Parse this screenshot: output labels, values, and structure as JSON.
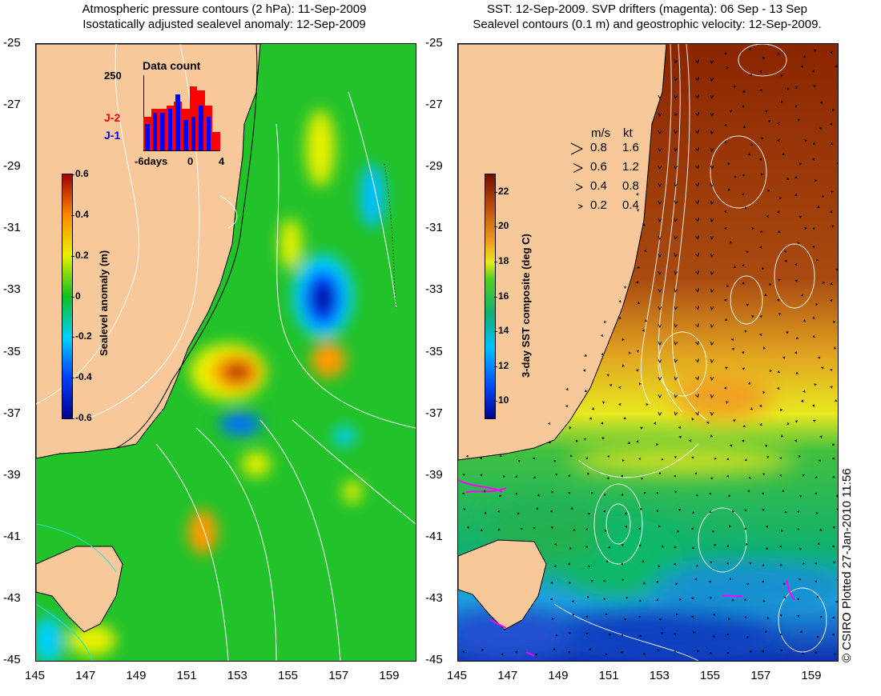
{
  "left_panel": {
    "title_line1": "Atmospheric pressure contours (2 hPa): 11-Sep-2009",
    "title_line2": "Isostatically adjusted sealevel anomaly: 12-Sep-2009",
    "colorbar": {
      "label": "Sealevel anomaly (m)",
      "ticks": [
        "0.6",
        "0.4",
        "0.2",
        "0",
        "-0.2",
        "-0.4",
        "-0.6"
      ],
      "range": [
        -0.6,
        0.6
      ]
    },
    "inset": {
      "title": "Data count",
      "ymax_label": "250",
      "xlabels": [
        "-6days",
        "0",
        "4"
      ],
      "legend": [
        {
          "label": "J-2",
          "color": "#ff0000"
        },
        {
          "label": "J-1",
          "color": "#0000ff"
        }
      ],
      "bars_j2": [
        0.45,
        0.55,
        0.55,
        0.6,
        0.65,
        0.55,
        0.85,
        0.8,
        0.6,
        0.25
      ],
      "bars_j1": [
        0.35,
        0.5,
        0.5,
        0.55,
        0.75,
        0.4,
        0.45,
        0.6,
        0.45,
        0.0
      ]
    }
  },
  "right_panel": {
    "title_line1": "SST: 12-Sep-2009. SVP drifters (magenta): 06 Sep - 13 Sep",
    "title_line2": "Sealevel contours (0.1 m) and geostrophic velocity: 12-Sep-2009.",
    "colorbar": {
      "label": "3-day SST composite (deg C)",
      "ticks": [
        "22",
        "20",
        "18",
        "16",
        "14",
        "12",
        "10"
      ],
      "range": [
        9,
        23
      ]
    },
    "velocity_legend": {
      "header_ms": "m/s",
      "header_kt": "kt",
      "rows": [
        {
          "ms": "0.8",
          "kt": "1.6"
        },
        {
          "ms": "0.6",
          "kt": "1.2"
        },
        {
          "ms": "0.4",
          "kt": "0.8"
        },
        {
          "ms": "0.2",
          "kt": "0.4"
        }
      ]
    }
  },
  "axes": {
    "x_ticks": [
      "145",
      "147",
      "149",
      "151",
      "153",
      "155",
      "157",
      "159"
    ],
    "y_ticks": [
      "-25",
      "-27",
      "-29",
      "-31",
      "-33",
      "-35",
      "-37",
      "-39",
      "-41",
      "-43",
      "-45"
    ],
    "lon_range": [
      145,
      160
    ],
    "lat_range": [
      -45,
      -25
    ]
  },
  "credit": "© CSIRO Plotted 27-Jan-2010 11:56",
  "colors": {
    "land": "#f7c89a",
    "ocean_mid": "#22c22a",
    "contour": "#ffffff",
    "drifter": "#ff00ff"
  }
}
